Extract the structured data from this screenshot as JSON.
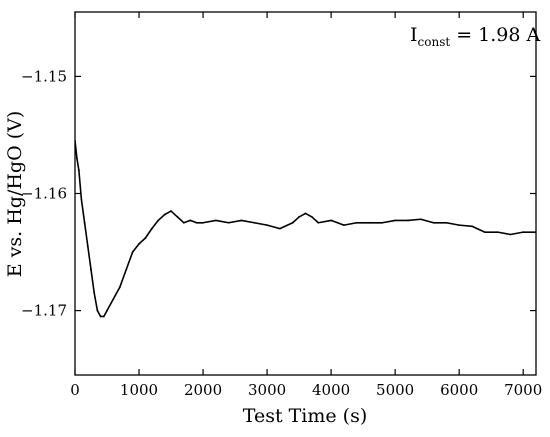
{
  "chart_data": {
    "type": "line",
    "title": "",
    "xlabel": "Test Time (s)",
    "ylabel": "E vs. Hg/HgO (V)",
    "xlim": [
      0,
      7200
    ],
    "ylim": [
      -1.1755,
      -1.1445
    ],
    "xticks": [
      0,
      1000,
      2000,
      3000,
      4000,
      5000,
      6000,
      7000
    ],
    "xtick_labels": [
      "0",
      "1000",
      "2000",
      "3000",
      "4000",
      "5000",
      "6000",
      "7000"
    ],
    "yticks": [
      -1.15,
      -1.16,
      -1.17
    ],
    "ytick_labels": [
      "−1.15",
      "−1.16",
      "−1.17"
    ],
    "grid": false,
    "annotation": {
      "main": "I",
      "sub": "const",
      "rest": " = 1.98 A"
    },
    "series": [
      {
        "color": "#000000",
        "x": [
          0,
          30,
          60,
          100,
          150,
          200,
          250,
          300,
          350,
          400,
          450,
          500,
          600,
          700,
          800,
          900,
          1000,
          1100,
          1200,
          1300,
          1400,
          1500,
          1600,
          1700,
          1800,
          1900,
          2000,
          2200,
          2400,
          2600,
          2800,
          3000,
          3200,
          3400,
          3500,
          3600,
          3700,
          3800,
          4000,
          4200,
          4400,
          4600,
          4800,
          5000,
          5200,
          5400,
          5600,
          5800,
          6000,
          6200,
          6400,
          6600,
          6800,
          7000,
          7200
        ],
        "y": [
          -1.1555,
          -1.157,
          -1.158,
          -1.1605,
          -1.1625,
          -1.1645,
          -1.1665,
          -1.1685,
          -1.17,
          -1.1705,
          -1.1705,
          -1.17,
          -1.169,
          -1.168,
          -1.1665,
          -1.165,
          -1.1643,
          -1.1638,
          -1.163,
          -1.1623,
          -1.1618,
          -1.1615,
          -1.162,
          -1.1625,
          -1.1623,
          -1.1625,
          -1.1625,
          -1.1623,
          -1.1625,
          -1.1623,
          -1.1625,
          -1.1627,
          -1.163,
          -1.1625,
          -1.162,
          -1.1617,
          -1.162,
          -1.1625,
          -1.1623,
          -1.1627,
          -1.1625,
          -1.1625,
          -1.1625,
          -1.1623,
          -1.1623,
          -1.1622,
          -1.1625,
          -1.1625,
          -1.1627,
          -1.1628,
          -1.1633,
          -1.1633,
          -1.1635,
          -1.1633,
          -1.1633
        ]
      }
    ]
  }
}
